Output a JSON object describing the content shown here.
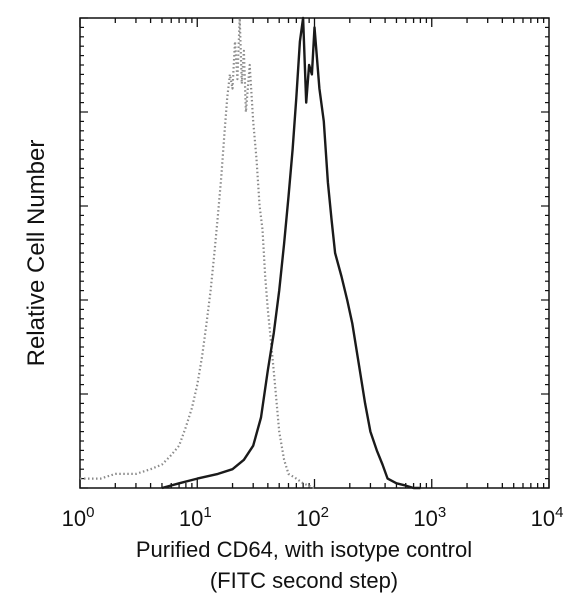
{
  "chart_data": {
    "type": "line",
    "title": "",
    "xlabel_line1": "Purified CD64, with isotype control",
    "xlabel_line2": "(FITC second step)",
    "ylabel": "Relative Cell Number",
    "xscale": "log",
    "xlim": [
      1,
      10000
    ],
    "ylim": [
      0,
      100
    ],
    "xtick_labels": [
      {
        "value": 1,
        "base": "10",
        "exp": "0"
      },
      {
        "value": 10,
        "base": "10",
        "exp": "1"
      },
      {
        "value": 100,
        "base": "10",
        "exp": "2"
      },
      {
        "value": 1000,
        "base": "10",
        "exp": "3"
      },
      {
        "value": 10000,
        "base": "10",
        "exp": "4"
      }
    ],
    "ytick_labels_shown": false,
    "grid": false,
    "legend": "none",
    "series": [
      {
        "role": "isotype control",
        "style": "dotted",
        "color": "#8a8a8a",
        "x": [
          1,
          1.5,
          2,
          3,
          4,
          5,
          6,
          7,
          8,
          9,
          10,
          11,
          12,
          13,
          14,
          15,
          16,
          17,
          18,
          19,
          20,
          21,
          22,
          23,
          24,
          25,
          26,
          28,
          30,
          32,
          34,
          36,
          38,
          40,
          43,
          46,
          50,
          55,
          60,
          70,
          80,
          100
        ],
        "y": [
          2,
          2,
          3,
          3,
          4,
          5,
          7,
          9,
          13,
          17,
          22,
          28,
          35,
          42,
          50,
          58,
          66,
          75,
          83,
          88,
          85,
          95,
          87,
          100,
          86,
          93,
          80,
          90,
          78,
          70,
          60,
          55,
          45,
          38,
          30,
          22,
          12,
          6,
          3,
          2,
          1,
          0
        ]
      },
      {
        "role": "CD64",
        "style": "solid",
        "color": "#1a1a1a",
        "x": [
          5,
          7,
          10,
          15,
          20,
          25,
          30,
          35,
          40,
          45,
          50,
          55,
          60,
          65,
          70,
          75,
          80,
          85,
          90,
          95,
          100,
          110,
          120,
          130,
          140,
          150,
          170,
          190,
          210,
          240,
          270,
          300,
          340,
          380,
          420,
          500,
          600,
          700,
          800
        ],
        "y": [
          0,
          1,
          2,
          3,
          4,
          6,
          9,
          15,
          25,
          33,
          42,
          52,
          62,
          72,
          83,
          95,
          100,
          82,
          90,
          88,
          98,
          85,
          78,
          65,
          57,
          50,
          45,
          40,
          35,
          26,
          18,
          12,
          8,
          5,
          2,
          1,
          0.5,
          0,
          0
        ]
      }
    ]
  }
}
